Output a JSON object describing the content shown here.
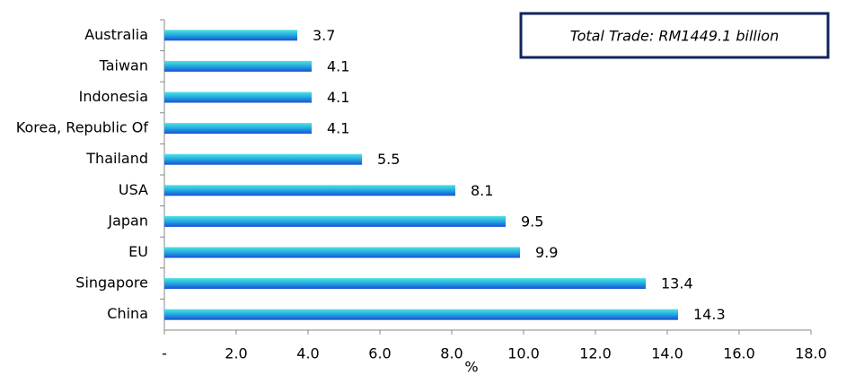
{
  "chart_data": {
    "type": "bar",
    "orientation": "horizontal",
    "annotation": "Total Trade: RM1449.1 billion",
    "x_label": "%",
    "categories": [
      "Australia",
      "Taiwan",
      "Indonesia",
      "Korea, Republic Of",
      "Thailand",
      "USA",
      "Japan",
      "EU",
      "Singapore",
      "China"
    ],
    "values": [
      3.7,
      4.1,
      4.1,
      4.1,
      5.5,
      8.1,
      9.5,
      9.9,
      13.4,
      14.3
    ],
    "xlim": [
      0,
      18
    ],
    "xticks": [
      {
        "value": 0,
        "label": "-"
      },
      {
        "value": 2,
        "label": "2.0"
      },
      {
        "value": 4,
        "label": "4.0"
      },
      {
        "value": 6,
        "label": "6.0"
      },
      {
        "value": 8,
        "label": "8.0"
      },
      {
        "value": 10,
        "label": "10.0"
      },
      {
        "value": 12,
        "label": "12.0"
      },
      {
        "value": 14,
        "label": "14.0"
      },
      {
        "value": 16,
        "label": "16.0"
      },
      {
        "value": 18,
        "label": "18.0"
      }
    ],
    "grid": false
  }
}
